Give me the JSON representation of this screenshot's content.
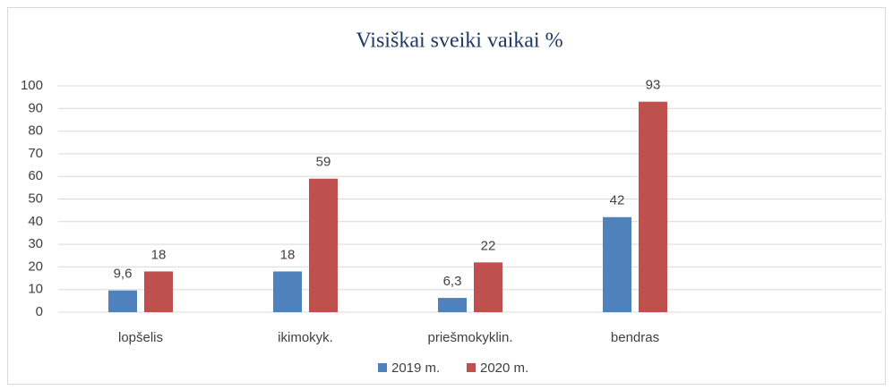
{
  "chart_data": {
    "type": "bar",
    "title": "Visiškai sveiki vaikai %",
    "categories": [
      "lopšelis",
      "ikimokyk.",
      "priešmokyklin.",
      "bendras",
      null
    ],
    "series": [
      {
        "name": "2019 m.",
        "color": "#4f81bd",
        "values": [
          9.6,
          18,
          6.3,
          42,
          null
        ],
        "value_labels": [
          "9,6",
          "18",
          "6,3",
          "42",
          null
        ]
      },
      {
        "name": "2020 m.",
        "color": "#c0504d",
        "values": [
          18,
          59,
          22,
          93,
          null
        ]
      }
    ],
    "ylim": [
      0,
      100
    ],
    "yticks": [
      0,
      10,
      20,
      30,
      40,
      50,
      60,
      70,
      80,
      90,
      100
    ],
    "grid": true,
    "legend": "bottom"
  }
}
